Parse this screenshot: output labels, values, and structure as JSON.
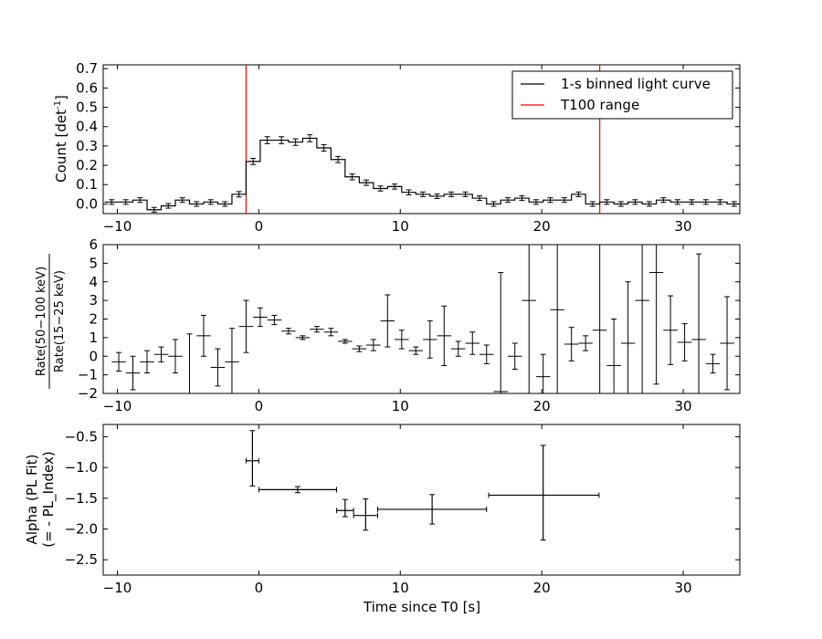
{
  "chart_data": [
    {
      "type": "line",
      "ylabel": "Count [det",
      "ylabel_sup": "-1",
      "ylabel_tail": "]",
      "xlim": [
        -11,
        34
      ],
      "ylim": [
        -0.05,
        0.72
      ],
      "xticks": [
        -10,
        0,
        10,
        20,
        30
      ],
      "xtick_labels": [
        "−10",
        "0",
        "10",
        "20",
        "30"
      ],
      "yticks": [
        0.0,
        0.1,
        0.2,
        0.3,
        0.4,
        0.5,
        0.6,
        0.7
      ],
      "ytick_labels": [
        "0.0",
        "0.1",
        "0.2",
        "0.3",
        "0.4",
        "0.5",
        "0.6",
        "0.7"
      ],
      "legend": {
        "placement": "upper-right",
        "entries": [
          {
            "label": "1-s binned light curve",
            "color": "#000000"
          },
          {
            "label": "T100 range",
            "color": "#ff0000"
          }
        ]
      },
      "vlines": {
        "x": [
          -0.9,
          24.1
        ],
        "color": "#ff0000"
      },
      "bin_start": -10.9,
      "bin_width": 1.0,
      "values": [
        0.01,
        0.01,
        0.02,
        -0.03,
        -0.01,
        0.02,
        0.0,
        0.01,
        0.0,
        0.05,
        0.22,
        0.33,
        0.33,
        0.32,
        0.34,
        0.29,
        0.23,
        0.14,
        0.11,
        0.08,
        0.09,
        0.06,
        0.05,
        0.04,
        0.05,
        0.05,
        0.03,
        0.0,
        0.02,
        0.03,
        0.01,
        0.02,
        0.02,
        0.05,
        0.0,
        0.01,
        0.0,
        0.01,
        0.0,
        0.02,
        0.01,
        0.01,
        0.01,
        0.01,
        0.0
      ],
      "errors": [
        0.012,
        0.012,
        0.012,
        0.012,
        0.012,
        0.012,
        0.012,
        0.012,
        0.012,
        0.014,
        0.016,
        0.018,
        0.018,
        0.017,
        0.018,
        0.017,
        0.016,
        0.015,
        0.014,
        0.013,
        0.013,
        0.013,
        0.012,
        0.012,
        0.012,
        0.012,
        0.012,
        0.012,
        0.012,
        0.012,
        0.012,
        0.012,
        0.012,
        0.012,
        0.012,
        0.012,
        0.012,
        0.012,
        0.012,
        0.012,
        0.012,
        0.012,
        0.012,
        0.012,
        0.012
      ]
    },
    {
      "type": "scatter",
      "ylabel_num": "Rate(50−100 keV)",
      "ylabel_den": "Rate(15−25 keV)",
      "xlim": [
        -11,
        34
      ],
      "ylim": [
        -2,
        6
      ],
      "xticks": [
        -10,
        0,
        10,
        20,
        30
      ],
      "xtick_labels": [
        "−10",
        "0",
        "10",
        "20",
        "30"
      ],
      "yticks": [
        -2,
        -1,
        0,
        1,
        2,
        3,
        4,
        5,
        6
      ],
      "ytick_labels": [
        "−2",
        "−1",
        "0",
        "1",
        "2",
        "3",
        "4",
        "5",
        "6"
      ],
      "points": [
        {
          "x": -9.9,
          "y": -0.3,
          "xerr": 0.5,
          "yerr": 0.5
        },
        {
          "x": -8.9,
          "y": -0.9,
          "xerr": 0.5,
          "yerr": 0.9
        },
        {
          "x": -7.9,
          "y": -0.3,
          "xerr": 0.5,
          "yerr": 0.6
        },
        {
          "x": -6.9,
          "y": 0.1,
          "xerr": 0.5,
          "yerr": 0.4
        },
        {
          "x": -5.9,
          "y": 0.0,
          "xerr": 0.5,
          "yerr": 0.9
        },
        {
          "x": -4.9,
          "y": -2.0,
          "xerr": 0.5,
          "yerr": 3.2
        },
        {
          "x": -3.9,
          "y": 1.1,
          "xerr": 0.5,
          "yerr": 1.1
        },
        {
          "x": -2.9,
          "y": -0.6,
          "xerr": 0.5,
          "yerr": 1.0
        },
        {
          "x": -1.9,
          "y": -0.3,
          "xerr": 0.5,
          "yerr": 1.8
        },
        {
          "x": -0.9,
          "y": 1.6,
          "xerr": 0.5,
          "yerr": 1.4
        },
        {
          "x": 0.1,
          "y": 2.1,
          "xerr": 0.5,
          "yerr": 0.5
        },
        {
          "x": 1.1,
          "y": 1.95,
          "xerr": 0.5,
          "yerr": 0.25
        },
        {
          "x": 2.1,
          "y": 1.35,
          "xerr": 0.5,
          "yerr": 0.15
        },
        {
          "x": 3.1,
          "y": 1.0,
          "xerr": 0.5,
          "yerr": 0.1
        },
        {
          "x": 4.1,
          "y": 1.45,
          "xerr": 0.5,
          "yerr": 0.15
        },
        {
          "x": 5.1,
          "y": 1.3,
          "xerr": 0.5,
          "yerr": 0.2
        },
        {
          "x": 6.1,
          "y": 0.8,
          "xerr": 0.5,
          "yerr": 0.1
        },
        {
          "x": 7.1,
          "y": 0.4,
          "xerr": 0.5,
          "yerr": 0.15
        },
        {
          "x": 8.1,
          "y": 0.6,
          "xerr": 0.5,
          "yerr": 0.3
        },
        {
          "x": 9.1,
          "y": 1.9,
          "xerr": 0.5,
          "yerr": 1.4
        },
        {
          "x": 10.1,
          "y": 0.9,
          "xerr": 0.5,
          "yerr": 0.5
        },
        {
          "x": 11.1,
          "y": 0.3,
          "xerr": 0.5,
          "yerr": 0.2
        },
        {
          "x": 12.1,
          "y": 0.9,
          "xerr": 0.5,
          "yerr": 1.0
        },
        {
          "x": 13.1,
          "y": 1.1,
          "xerr": 0.5,
          "yerr": 1.6
        },
        {
          "x": 14.1,
          "y": 0.4,
          "xerr": 0.5,
          "yerr": 0.4
        },
        {
          "x": 15.1,
          "y": 0.7,
          "xerr": 0.5,
          "yerr": 0.6
        },
        {
          "x": 16.1,
          "y": 0.1,
          "xerr": 0.5,
          "yerr": 0.5
        },
        {
          "x": 17.1,
          "y": -1.9,
          "xerr": 0.5,
          "yerr": 6.4
        },
        {
          "x": 18.1,
          "y": 0.0,
          "xerr": 0.5,
          "yerr": 0.7
        },
        {
          "x": 19.1,
          "y": 3.0,
          "xerr": 0.5,
          "yerr": 6.0
        },
        {
          "x": 20.1,
          "y": -1.1,
          "xerr": 0.5,
          "yerr": 1.2
        },
        {
          "x": 21.1,
          "y": 2.5,
          "xerr": 0.5,
          "yerr": 6.0
        },
        {
          "x": 22.1,
          "y": 0.65,
          "xerr": 0.5,
          "yerr": 0.9
        },
        {
          "x": 23.1,
          "y": 0.7,
          "xerr": 0.5,
          "yerr": 0.4
        },
        {
          "x": 24.1,
          "y": 1.4,
          "xerr": 0.5,
          "yerr": 6.0
        },
        {
          "x": 25.1,
          "y": -0.5,
          "xerr": 0.5,
          "yerr": 2.5
        },
        {
          "x": 26.1,
          "y": 0.7,
          "xerr": 0.5,
          "yerr": 3.3
        },
        {
          "x": 27.1,
          "y": 3.0,
          "xerr": 0.5,
          "yerr": 6.0
        },
        {
          "x": 28.1,
          "y": 4.5,
          "xerr": 0.5,
          "yerr": 6.0
        },
        {
          "x": 29.1,
          "y": 1.4,
          "xerr": 0.5,
          "yerr": 1.85
        },
        {
          "x": 30.1,
          "y": 0.75,
          "xerr": 0.5,
          "yerr": 1.0
        },
        {
          "x": 31.1,
          "y": 0.9,
          "xerr": 0.5,
          "yerr": 4.6
        },
        {
          "x": 32.1,
          "y": -0.4,
          "xerr": 0.5,
          "yerr": 0.5
        },
        {
          "x": 33.1,
          "y": 0.7,
          "xerr": 0.5,
          "yerr": 2.5
        }
      ]
    },
    {
      "type": "scatter",
      "ylabel_line1": "Alpha (PL Fit)",
      "ylabel_line2": "(= - PL_Index)",
      "xlabel": "Time since T0 [s]",
      "xlim": [
        -11,
        34
      ],
      "ylim": [
        -2.75,
        -0.3
      ],
      "xticks": [
        -10,
        0,
        10,
        20,
        30
      ],
      "xtick_labels": [
        "−10",
        "0",
        "10",
        "20",
        "30"
      ],
      "yticks": [
        -2.5,
        -2.0,
        -1.5,
        -1.0,
        -0.5
      ],
      "ytick_labels": [
        "−2.5",
        "−2.0",
        "−1.5",
        "−1.0",
        "−0.5"
      ],
      "points": [
        {
          "x": -0.45,
          "y": -0.89,
          "xl": 0.45,
          "xr": 0.45,
          "yl": 0.41,
          "yu": 0.49
        },
        {
          "x": 2.75,
          "y": -1.36,
          "xl": 2.75,
          "xr": 2.75,
          "yl": 0.05,
          "yu": 0.05
        },
        {
          "x": 6.1,
          "y": -1.7,
          "xl": 0.6,
          "xr": 0.6,
          "yl": 0.1,
          "yu": 0.18
        },
        {
          "x": 7.55,
          "y": -1.78,
          "xl": 0.85,
          "xr": 0.85,
          "yl": 0.24,
          "yu": 0.27
        },
        {
          "x": 12.25,
          "y": -1.68,
          "xl": 3.85,
          "xr": 3.85,
          "yl": 0.24,
          "yu": 0.24
        },
        {
          "x": 20.1,
          "y": -1.45,
          "xl": 3.85,
          "xr": 3.95,
          "yl": 0.73,
          "yu": 0.81
        }
      ]
    }
  ]
}
